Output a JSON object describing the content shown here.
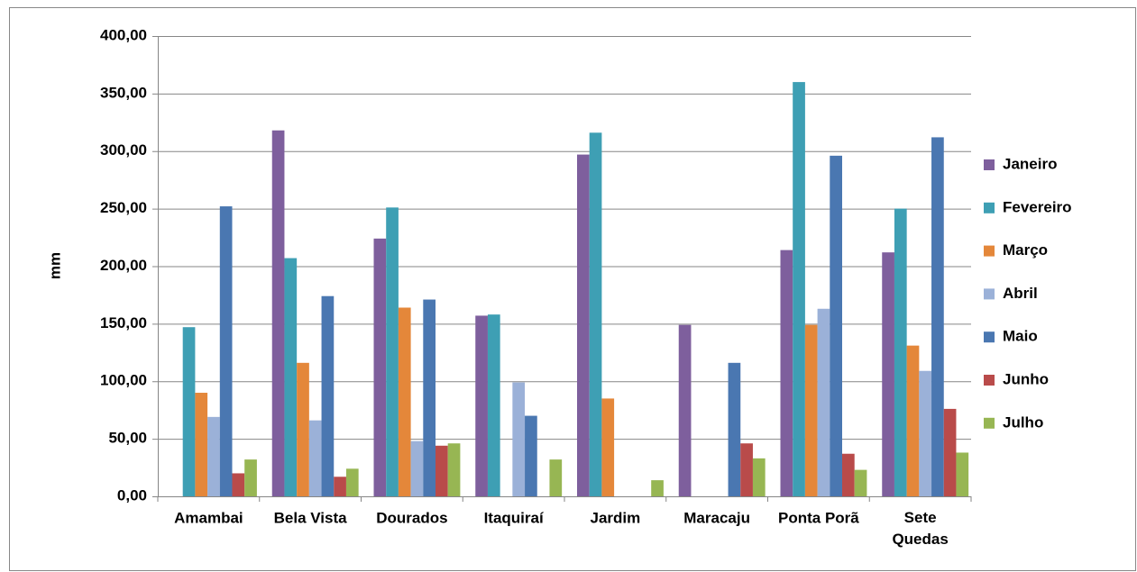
{
  "chart_data": {
    "type": "bar",
    "y_label": "mm",
    "categories": [
      "Amambai",
      "Bela Vista",
      "Dourados",
      "Itaquiraí",
      "Jardim",
      "Maracaju",
      "Ponta Porã",
      "Sete Quedas"
    ],
    "series": [
      {
        "name": "Janeiro",
        "color": "#7e5f9d",
        "values": [
          0,
          318,
          224,
          157,
          297,
          149,
          214,
          212
        ]
      },
      {
        "name": "Fevereiro",
        "color": "#3e9fb4",
        "values": [
          147,
          207,
          251,
          158,
          316,
          0,
          360,
          250
        ]
      },
      {
        "name": "Março",
        "color": "#e4873a",
        "values": [
          90,
          116,
          164,
          0,
          85,
          0,
          149,
          131
        ]
      },
      {
        "name": "Abril",
        "color": "#9bb1d8",
        "values": [
          69,
          66,
          48,
          99,
          0,
          0,
          163,
          109
        ]
      },
      {
        "name": "Maio",
        "color": "#4a77b1",
        "values": [
          252,
          174,
          171,
          70,
          0,
          116,
          296,
          312
        ]
      },
      {
        "name": "Junho",
        "color": "#b94b4a",
        "values": [
          20,
          17,
          44,
          0,
          0,
          46,
          37,
          76
        ]
      },
      {
        "name": "Julho",
        "color": "#97b653",
        "values": [
          32,
          24,
          46,
          32,
          14,
          33,
          23,
          38
        ]
      }
    ],
    "ylim": [
      0,
      400
    ],
    "yticks": [
      {
        "value": 0,
        "label": "0,00"
      },
      {
        "value": 50,
        "label": "50,00"
      },
      {
        "value": 100,
        "label": "100,00"
      },
      {
        "value": 150,
        "label": "150,00"
      },
      {
        "value": 200,
        "label": "200,00"
      },
      {
        "value": 250,
        "label": "250,00"
      },
      {
        "value": 300,
        "label": "300,00"
      },
      {
        "value": 350,
        "label": "350,00"
      },
      {
        "value": 400,
        "label": "400,00"
      }
    ],
    "grid": true,
    "legend": "right"
  }
}
